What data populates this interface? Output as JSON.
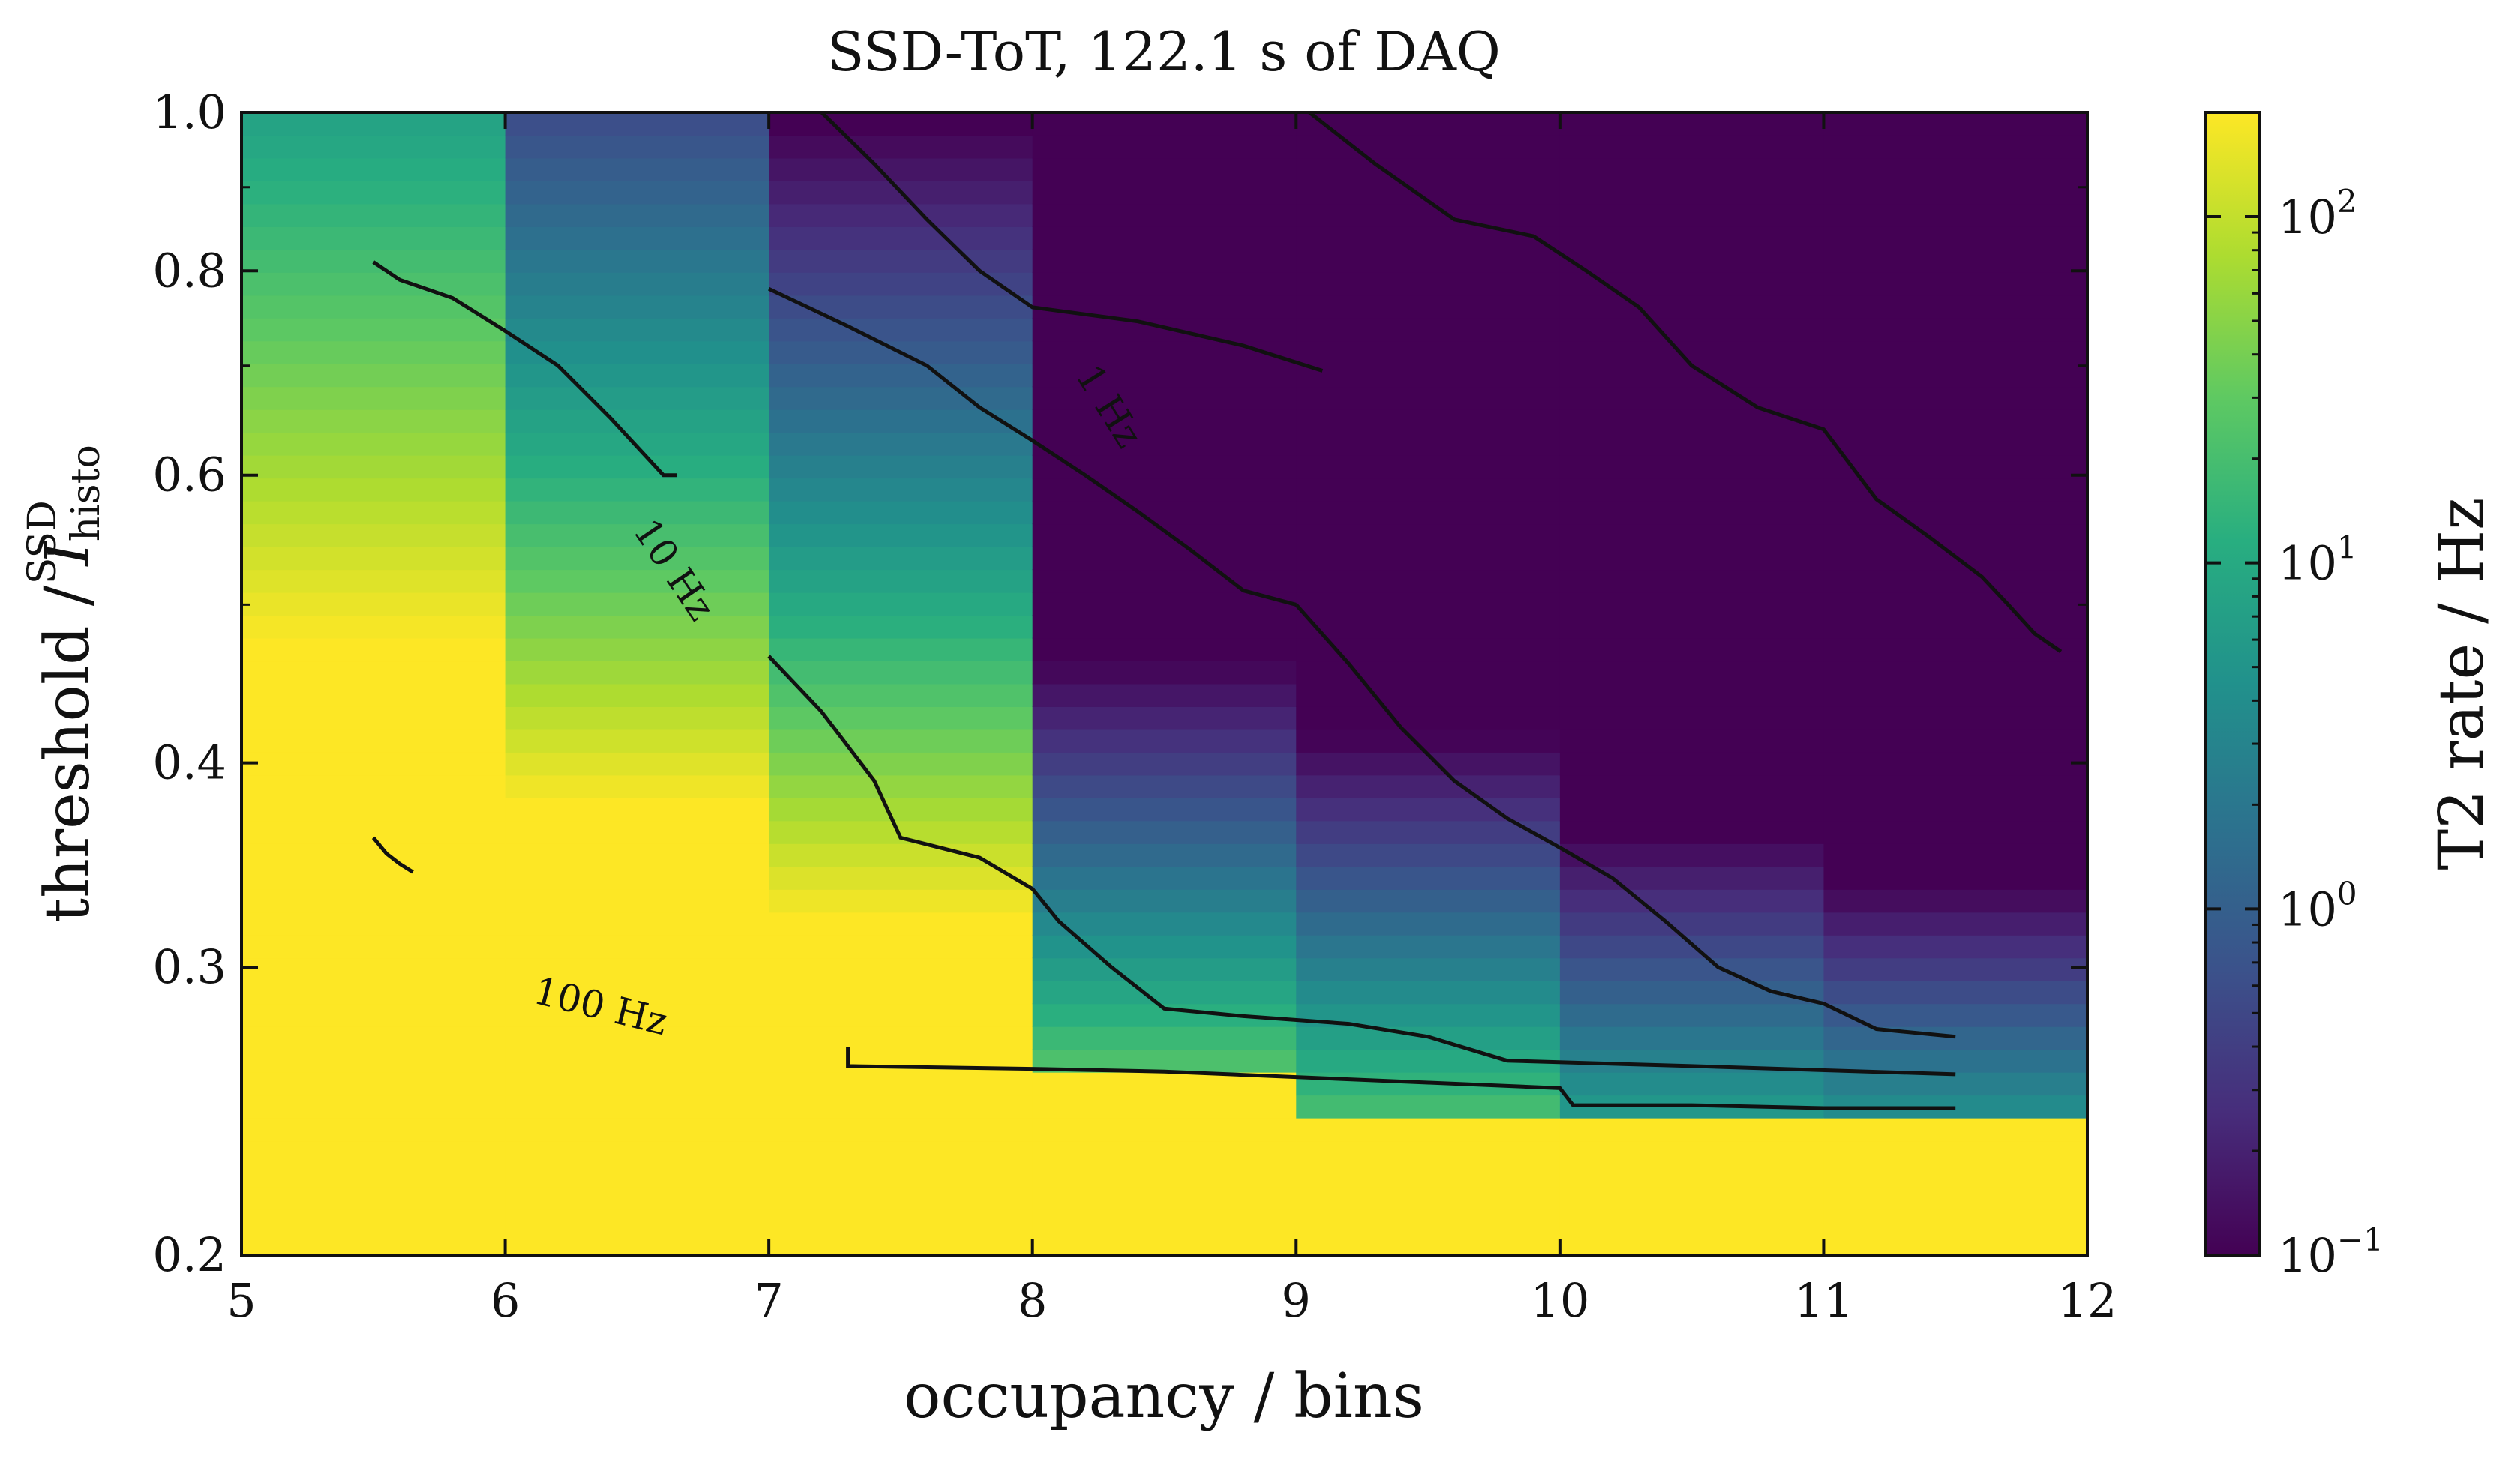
{
  "chart_data": {
    "type": "heatmap",
    "title": "SSD-ToT, 122.1 s of DAQ",
    "xlabel": "occupancy / bins",
    "ylabel_main": "threshold / ",
    "ylabel_symbol": "I",
    "ylabel_sup": "SSD",
    "ylabel_sub": "histo",
    "colorbar_label": "T2 rate / Hz",
    "colormap": "viridis",
    "color_scale": "log",
    "colorbar_range": [
      0.1,
      200
    ],
    "x_range": [
      5,
      12
    ],
    "y_range": [
      0.2,
      1.0
    ],
    "y_scale": "log",
    "x_ticks": [
      "5",
      "6",
      "7",
      "8",
      "9",
      "10",
      "11",
      "12"
    ],
    "y_ticks": [
      {
        "value": 0.2,
        "label": "0.2"
      },
      {
        "value": 0.3,
        "label": "0.3"
      },
      {
        "value": 0.4,
        "label": "0.4"
      },
      {
        "value": 0.6,
        "label": "0.6"
      },
      {
        "value": 0.8,
        "label": "0.8"
      },
      {
        "value": 1.0,
        "label": "1.0"
      }
    ],
    "y_minor_ticks": [
      0.5,
      0.7,
      0.9
    ],
    "colorbar_ticks": [
      {
        "value": 0.1,
        "base": "10",
        "exp": "−1"
      },
      {
        "value": 1,
        "base": "10",
        "exp": "0"
      },
      {
        "value": 10,
        "base": "10",
        "exp": "1"
      },
      {
        "value": 100,
        "base": "10",
        "exp": "2"
      }
    ],
    "columns": [
      {
        "x0": 5,
        "x1": 6,
        "drop": 0.29,
        "k": 1.1,
        "anchor_y": 0.556,
        "anchor_rate": 100
      },
      {
        "x0": 6,
        "x1": 7,
        "drop": 0.27,
        "k": 1.5,
        "anchor_y": 0.62,
        "anchor_rate": 10
      },
      {
        "x0": 7,
        "x1": 8,
        "drop": 0.255,
        "k": 1.7,
        "anchor_y": 0.7,
        "anchor_rate": 1
      },
      {
        "x0": 8,
        "x1": 9,
        "drop": 0.255,
        "k": 2.4,
        "anchor_y": 0.2855,
        "anchor_rate": 10
      },
      {
        "x0": 9,
        "x1": 10,
        "drop": 0.24,
        "k": 2.5,
        "anchor_y": 0.33,
        "anchor_rate": 1
      },
      {
        "x0": 10,
        "x1": 11,
        "drop": 0.24,
        "k": 2.6,
        "anchor_y": 0.29,
        "anchor_rate": 1
      },
      {
        "x0": 11,
        "x1": 12,
        "drop": 0.24,
        "k": 2.9,
        "anchor_y": 0.276,
        "anchor_rate": 1
      }
    ],
    "contours": [
      {
        "level": "0.1 Hz",
        "points": [
          [
            7.2,
            1.0
          ],
          [
            7.4,
            0.93
          ],
          [
            7.6,
            0.86
          ],
          [
            7.8,
            0.8
          ],
          [
            8.0,
            0.76
          ],
          [
            8.4,
            0.745
          ],
          [
            8.8,
            0.72
          ],
          [
            9.1,
            0.695
          ]
        ]
      },
      {
        "level": "0.1 Hz",
        "points": [
          [
            9.05,
            1.0
          ],
          [
            9.3,
            0.93
          ],
          [
            9.6,
            0.86
          ],
          [
            9.9,
            0.84
          ],
          [
            10.1,
            0.8
          ],
          [
            10.3,
            0.76
          ],
          [
            10.5,
            0.7
          ],
          [
            10.75,
            0.66
          ],
          [
            11.0,
            0.64
          ],
          [
            11.2,
            0.58
          ],
          [
            11.4,
            0.55
          ],
          [
            11.6,
            0.52
          ],
          [
            11.7,
            0.5
          ],
          [
            11.8,
            0.48
          ],
          [
            11.9,
            0.468
          ]
        ]
      },
      {
        "level": "1 Hz",
        "points": [
          [
            5.5,
            0.81
          ],
          [
            5.6,
            0.79
          ],
          [
            5.8,
            0.77
          ],
          [
            6.0,
            0.735
          ],
          [
            6.2,
            0.7
          ],
          [
            6.4,
            0.65
          ],
          [
            6.6,
            0.6
          ],
          [
            6.65,
            0.6
          ]
        ]
      },
      {
        "level": "1 Hz",
        "points": [
          [
            7.0,
            0.78
          ],
          [
            7.3,
            0.74
          ],
          [
            7.6,
            0.7
          ],
          [
            7.8,
            0.66
          ],
          [
            8.0,
            0.63
          ],
          [
            8.2,
            0.6
          ],
          [
            8.4,
            0.57
          ],
          [
            8.6,
            0.54
          ],
          [
            8.8,
            0.51
          ],
          [
            9.0,
            0.5
          ]
        ]
      },
      {
        "level": "1 Hz",
        "points": [
          [
            9.0,
            0.5
          ],
          [
            9.2,
            0.46
          ],
          [
            9.4,
            0.42
          ],
          [
            9.6,
            0.39
          ],
          [
            9.8,
            0.37
          ],
          [
            10.0,
            0.355
          ],
          [
            10.2,
            0.34
          ],
          [
            10.4,
            0.32
          ],
          [
            10.6,
            0.3
          ],
          [
            10.8,
            0.29
          ],
          [
            11.0,
            0.285
          ],
          [
            11.2,
            0.275
          ],
          [
            11.5,
            0.272
          ]
        ]
      },
      {
        "level": "10 Hz",
        "points": [
          [
            7.0,
            0.465
          ],
          [
            7.2,
            0.43
          ],
          [
            7.4,
            0.39
          ],
          [
            7.5,
            0.36
          ],
          [
            7.8,
            0.35
          ],
          [
            8.0,
            0.335
          ],
          [
            8.1,
            0.32
          ],
          [
            8.3,
            0.3
          ],
          [
            8.5,
            0.283
          ],
          [
            8.8,
            0.28
          ],
          [
            9.2,
            0.277
          ],
          [
            9.5,
            0.272
          ],
          [
            9.8,
            0.263
          ],
          [
            10.5,
            0.261
          ],
          [
            11.5,
            0.258
          ]
        ]
      },
      {
        "level": "100 Hz",
        "points": [
          [
            5.5,
            0.36
          ],
          [
            5.55,
            0.352
          ],
          [
            5.6,
            0.347
          ],
          [
            5.65,
            0.343
          ]
        ]
      },
      {
        "level": "100 Hz",
        "points": [
          [
            7.3,
            0.268
          ],
          [
            7.3,
            0.261
          ],
          [
            8.0,
            0.26
          ],
          [
            8.5,
            0.259
          ],
          [
            9.0,
            0.257
          ],
          [
            9.5,
            0.255
          ],
          [
            10.0,
            0.253
          ],
          [
            10.05,
            0.247
          ],
          [
            10.5,
            0.247
          ],
          [
            11.0,
            0.246
          ],
          [
            11.5,
            0.246
          ]
        ]
      }
    ],
    "contour_labels": [
      {
        "text": "100 Hz",
        "x": 6.35,
        "y": 0.279,
        "angle": 14
      },
      {
        "text": "10 Hz",
        "x": 6.6,
        "y": 0.52,
        "angle": 56
      },
      {
        "text": "1 Hz",
        "x": 8.25,
        "y": 0.655,
        "angle": 58
      }
    ]
  }
}
